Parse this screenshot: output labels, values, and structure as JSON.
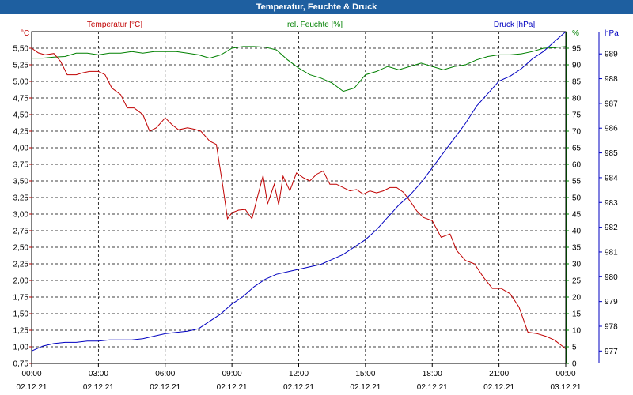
{
  "window": {
    "title": "Temperatur, Feuchte & Druck"
  },
  "chart_data": {
    "type": "line",
    "title": "Temperatur, Feuchte & Druck",
    "x_ticks": [
      {
        "time": "00:00",
        "date": "02.12.21"
      },
      {
        "time": "03:00",
        "date": "02.12.21"
      },
      {
        "time": "06:00",
        "date": "02.12.21"
      },
      {
        "time": "09:00",
        "date": "02.12.21"
      },
      {
        "time": "12:00",
        "date": "02.12.21"
      },
      {
        "time": "15:00",
        "date": "02.12.21"
      },
      {
        "time": "18:00",
        "date": "02.12.21"
      },
      {
        "time": "21:00",
        "date": "02.12.21"
      },
      {
        "time": "00:00",
        "date": "03.12.21"
      }
    ],
    "xlim": [
      0,
      24
    ],
    "grid": true,
    "axes": {
      "temperature": {
        "unit": "°C",
        "label": "Temperatur [°C]",
        "color": "#c00000",
        "ylim": [
          0.75,
          5.75
        ],
        "ticks": [
          "0,75",
          "1,00",
          "1,25",
          "1,50",
          "1,75",
          "2,00",
          "2,25",
          "2,50",
          "2,75",
          "3,00",
          "3,25",
          "3,50",
          "3,75",
          "4,00",
          "4,25",
          "4,50",
          "4,75",
          "5,00",
          "5,25",
          "5,50"
        ]
      },
      "humidity": {
        "unit": "%",
        "label": "rel. Feuchte [%]",
        "color": "#008000",
        "ylim": [
          0,
          100
        ],
        "ticks": [
          "0",
          "5",
          "10",
          "15",
          "20",
          "25",
          "30",
          "35",
          "40",
          "45",
          "50",
          "55",
          "60",
          "65",
          "70",
          "75",
          "80",
          "85",
          "90",
          "95"
        ]
      },
      "pressure": {
        "unit": "hPa",
        "label": "Druck [hPa]",
        "color": "#0000c0",
        "ylim": [
          976.5,
          989.9
        ],
        "ticks": [
          "977",
          "978",
          "979",
          "980",
          "981",
          "982",
          "983",
          "984",
          "985",
          "986",
          "987",
          "988",
          "989"
        ]
      }
    },
    "series": [
      {
        "name": "Temperatur [°C]",
        "axis": "temperature",
        "x": [
          0,
          0.3,
          0.6,
          1.0,
          1.3,
          1.6,
          2.0,
          2.3,
          2.6,
          3.0,
          3.3,
          3.6,
          4.0,
          4.3,
          4.6,
          5.0,
          5.3,
          5.6,
          6.0,
          6.3,
          6.6,
          7.0,
          7.3,
          7.6,
          8.0,
          8.3,
          8.6,
          8.8,
          9.0,
          9.3,
          9.6,
          9.9,
          10.1,
          10.4,
          10.6,
          10.9,
          11.1,
          11.3,
          11.6,
          11.9,
          12.2,
          12.5,
          12.8,
          13.1,
          13.4,
          13.7,
          14.0,
          14.3,
          14.6,
          14.9,
          15.2,
          15.5,
          15.8,
          16.1,
          16.4,
          16.7,
          17.0,
          17.3,
          17.6,
          18.0,
          18.4,
          18.8,
          19.1,
          19.5,
          19.9,
          20.3,
          20.7,
          21.1,
          21.5,
          21.9,
          22.3,
          22.7,
          23.1,
          23.5,
          24.0
        ],
        "y": [
          5.5,
          5.43,
          5.4,
          5.42,
          5.3,
          5.1,
          5.1,
          5.13,
          5.15,
          5.15,
          5.1,
          4.9,
          4.8,
          4.6,
          4.6,
          4.5,
          4.25,
          4.3,
          4.45,
          4.35,
          4.27,
          4.3,
          4.28,
          4.25,
          4.1,
          4.05,
          3.4,
          2.93,
          3.02,
          3.06,
          3.07,
          2.93,
          3.2,
          3.58,
          3.15,
          3.45,
          3.14,
          3.57,
          3.35,
          3.62,
          3.55,
          3.5,
          3.6,
          3.65,
          3.45,
          3.45,
          3.4,
          3.35,
          3.37,
          3.3,
          3.35,
          3.32,
          3.35,
          3.4,
          3.4,
          3.33,
          3.2,
          3.05,
          2.95,
          2.9,
          2.65,
          2.7,
          2.45,
          2.3,
          2.25,
          2.05,
          1.88,
          1.88,
          1.8,
          1.6,
          1.22,
          1.2,
          1.16,
          1.1,
          0.97
        ]
      },
      {
        "name": "rel. Feuchte [%]",
        "axis": "humidity",
        "x": [
          0,
          0.5,
          1.0,
          1.5,
          2.0,
          2.5,
          3.0,
          3.5,
          4.0,
          4.5,
          5.0,
          5.5,
          6.0,
          6.5,
          7.0,
          7.5,
          8.0,
          8.5,
          9.0,
          9.5,
          10.0,
          10.5,
          11.0,
          11.5,
          12.0,
          12.5,
          13.0,
          13.5,
          14.0,
          14.5,
          15.0,
          15.5,
          16.0,
          16.5,
          17.0,
          17.5,
          18.0,
          18.5,
          19.0,
          19.5,
          20.0,
          20.5,
          21.0,
          21.5,
          22.0,
          22.5,
          23.0,
          23.5,
          24.0
        ],
        "y": [
          92,
          92,
          92.3,
          92.5,
          93.5,
          93.5,
          93,
          93.5,
          93.5,
          94,
          93.5,
          94,
          94,
          94,
          93.5,
          93,
          92,
          93,
          95,
          95.5,
          95.5,
          95.3,
          94.5,
          91.5,
          89,
          87,
          86,
          84.5,
          82,
          83,
          87,
          88,
          89.5,
          88.5,
          89.5,
          90.5,
          89.5,
          88.5,
          89.5,
          90,
          91.5,
          92.5,
          93,
          93,
          93.3,
          94,
          95,
          95.2,
          95.5
        ]
      },
      {
        "name": "Druck [hPa]",
        "axis": "pressure",
        "x": [
          0,
          0.5,
          1.0,
          1.5,
          2.0,
          2.5,
          3.0,
          3.5,
          4.0,
          4.5,
          5.0,
          5.5,
          6.0,
          6.5,
          7.0,
          7.5,
          8.0,
          8.5,
          9.0,
          9.5,
          10.0,
          10.5,
          11.0,
          11.5,
          12.0,
          12.5,
          13.0,
          13.5,
          14.0,
          14.5,
          15.0,
          15.5,
          16.0,
          16.5,
          17.0,
          17.5,
          18.0,
          18.5,
          19.0,
          19.5,
          20.0,
          20.5,
          21.0,
          21.5,
          22.0,
          22.5,
          23.0,
          23.5,
          24.0
        ],
        "y": [
          977.0,
          977.2,
          977.3,
          977.35,
          977.35,
          977.4,
          977.4,
          977.45,
          977.45,
          977.45,
          977.5,
          977.6,
          977.7,
          977.75,
          977.8,
          977.9,
          978.2,
          978.5,
          978.9,
          979.2,
          979.6,
          979.9,
          980.1,
          980.2,
          980.3,
          980.4,
          980.5,
          980.7,
          980.9,
          981.2,
          981.5,
          981.9,
          982.4,
          982.9,
          983.3,
          983.8,
          984.4,
          985.0,
          985.6,
          986.2,
          986.9,
          987.4,
          987.9,
          988.1,
          988.4,
          988.8,
          989.1,
          989.5,
          989.9
        ]
      }
    ]
  }
}
